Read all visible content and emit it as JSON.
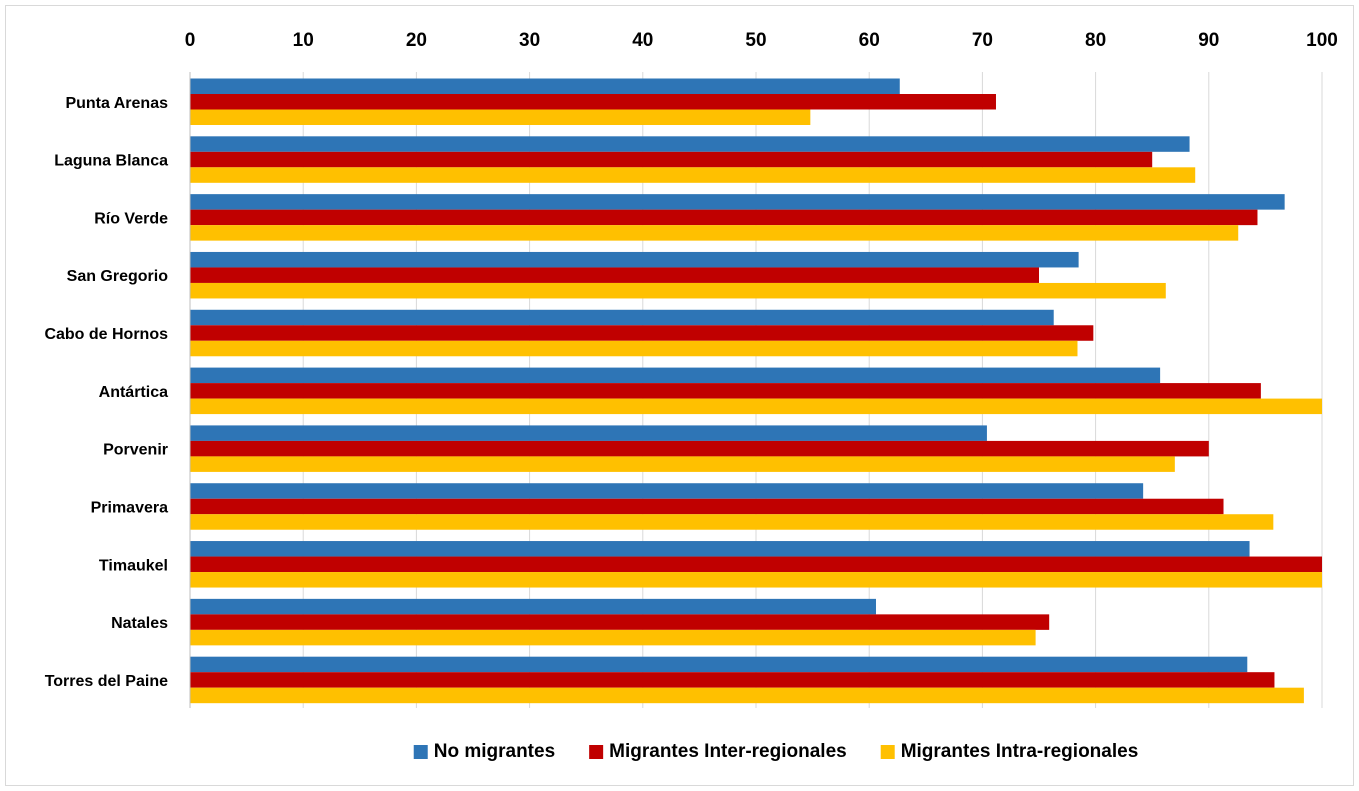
{
  "chart_data": {
    "type": "bar",
    "orientation": "horizontal",
    "categories": [
      "Punta Arenas",
      "Laguna Blanca",
      "Río Verde",
      "San Gregorio",
      "Cabo de Hornos",
      "Antártica",
      "Porvenir",
      "Primavera",
      "Timaukel",
      "Natales",
      "Torres del Paine"
    ],
    "series": [
      {
        "name": "No migrantes",
        "color": "#2e75b6",
        "values": [
          62.7,
          88.3,
          96.7,
          78.5,
          76.3,
          85.7,
          70.4,
          84.2,
          93.6,
          60.6,
          93.4
        ]
      },
      {
        "name": "Migrantes Inter-regionales",
        "color": "#c00000",
        "values": [
          71.2,
          85.0,
          94.3,
          75.0,
          79.8,
          94.6,
          90.0,
          91.3,
          100,
          75.9,
          95.8
        ]
      },
      {
        "name": "Migrantes Intra-regionales",
        "color": "#ffc000",
        "values": [
          54.8,
          88.8,
          92.6,
          86.2,
          78.4,
          100,
          87.0,
          95.7,
          100,
          74.7,
          98.4
        ]
      }
    ],
    "xlim": [
      0,
      100
    ],
    "xticks": [
      0,
      10,
      20,
      30,
      40,
      50,
      60,
      70,
      80,
      90,
      100
    ],
    "x_axis_position": "top",
    "grid": true,
    "legend_position": "bottom",
    "title": "",
    "xlabel": "",
    "ylabel": ""
  }
}
